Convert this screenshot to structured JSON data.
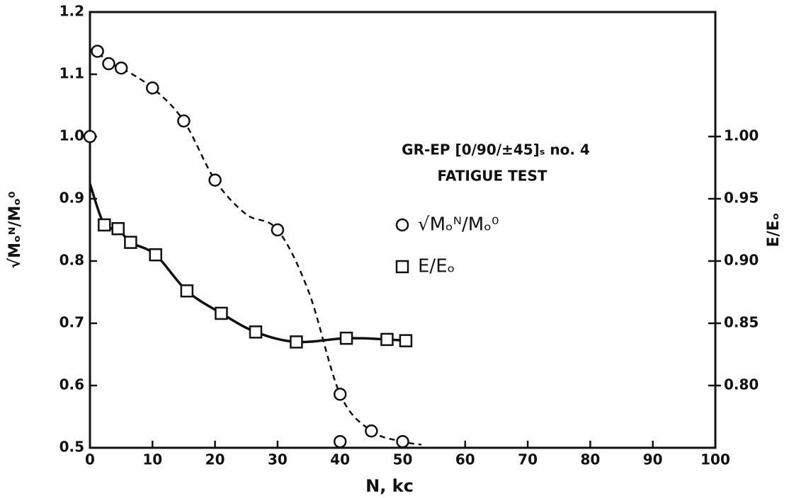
{
  "chart_data": {
    "type": "scatter",
    "title": "GR-EP [0/90/±45]ₛ no. 4",
    "subtitle": "FATIGUE TEST",
    "xlabel": "N, kc",
    "ylabel": "√Mₒᴺ/Mₒ⁰",
    "y2label": "E/Eₒ",
    "xlim": [
      0,
      100
    ],
    "xticks": [
      0,
      10,
      20,
      30,
      40,
      50,
      60,
      70,
      80,
      90,
      100
    ],
    "ylim": [
      0.5,
      1.2
    ],
    "yticks": [
      0.5,
      0.6,
      0.7,
      0.8,
      0.9,
      {
        "value": 1.0,
        "label": "1.0"
      },
      1.1,
      1.2
    ],
    "y2lim": [
      0.75,
      1.1
    ],
    "y2ticks": [
      {
        "value": 0.8,
        "label": "0.80"
      },
      0.85,
      {
        "value": 0.9,
        "label": "0.90"
      },
      0.95,
      {
        "value": 1.0,
        "label": "1.00"
      }
    ],
    "grid": false,
    "legend": "right",
    "series": [
      {
        "name": "√Mₒᴺ/Mₒ⁰",
        "color": "#111111",
        "marker": "circle",
        "x": [
          0,
          1.2,
          3,
          5,
          10,
          15,
          20,
          30,
          40,
          45,
          40,
          50
        ],
        "values": [
          1.0,
          1.137,
          1.117,
          1.11,
          1.078,
          1.025,
          0.93,
          0.85,
          0.586,
          0.527,
          0.51,
          0.51
        ],
        "curve": {
          "style": "dashed",
          "x": [
            0,
            1.2,
            3,
            5,
            10,
            15,
            20,
            25,
            30,
            35,
            40,
            45,
            50,
            53
          ],
          "values": [
            1.14,
            1.137,
            1.117,
            1.11,
            1.078,
            1.025,
            0.93,
            0.875,
            0.85,
            0.75,
            0.586,
            0.527,
            0.51,
            0.505
          ]
        }
      },
      {
        "name": "E/Eₒ",
        "color": "#111111",
        "marker": "square",
        "axis": "y2",
        "x": [
          2.3,
          4.5,
          6.5,
          10.5,
          15.5,
          21,
          26.5,
          33,
          41,
          47.5,
          50.5
        ],
        "values": [
          0.929,
          0.926,
          0.915,
          0.905,
          0.876,
          0.858,
          0.843,
          0.835,
          0.838,
          0.837,
          0.836
        ],
        "curve": {
          "style": "solid",
          "x": [
            0,
            2.3,
            4.5,
            6.5,
            10.5,
            15.5,
            21,
            26.5,
            33,
            41,
            47.5,
            50.5
          ],
          "values": [
            0.962,
            0.929,
            0.926,
            0.915,
            0.905,
            0.876,
            0.858,
            0.843,
            0.835,
            0.838,
            0.837,
            0.836
          ]
        }
      }
    ]
  }
}
